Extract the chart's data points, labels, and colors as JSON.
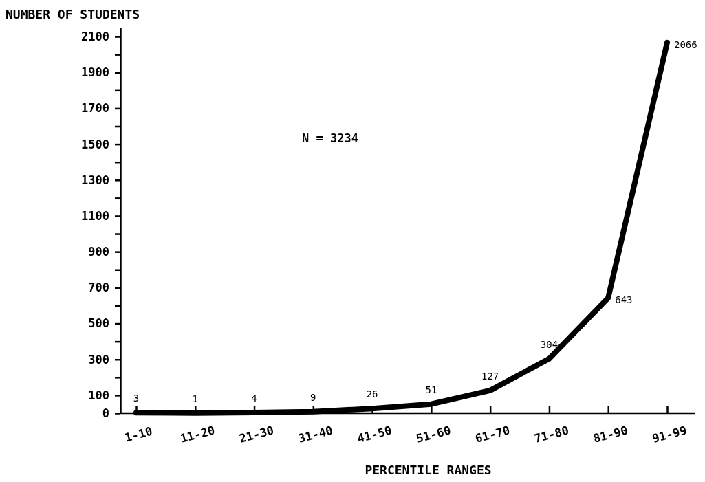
{
  "chart_data": {
    "type": "line",
    "ylabel": "NUMBER OF STUDENTS",
    "xlabel": "PERCENTILE RANGES",
    "annotations": [
      "N = 3234"
    ],
    "categories": [
      "1-10",
      "11-20",
      "21-30",
      "31-40",
      "41-50",
      "51-60",
      "61-70",
      "71-80",
      "81-90",
      "91-99"
    ],
    "series": [
      {
        "color": "#000000",
        "values": [
          3,
          1,
          4,
          9,
          26,
          51,
          127,
          304,
          643,
          2066
        ]
      }
    ],
    "ylim": [
      0,
      2150
    ],
    "yticks": [
      0,
      100,
      {
        "value": 200,
        "label": null
      },
      300,
      {
        "value": 400,
        "label": null
      },
      500,
      {
        "value": 600,
        "label": null
      },
      700,
      {
        "value": 800,
        "label": null
      },
      900,
      {
        "value": 1000,
        "label": null
      },
      1100,
      {
        "value": 1200,
        "label": null
      },
      1300,
      {
        "value": 1400,
        "label": null
      },
      1500,
      {
        "value": 1600,
        "label": null
      },
      1700,
      {
        "value": 1800,
        "label": null
      },
      1900,
      {
        "value": 2000,
        "label": null
      },
      2100
    ],
    "data_labels": true,
    "marker": "none",
    "line_style": "solid"
  }
}
